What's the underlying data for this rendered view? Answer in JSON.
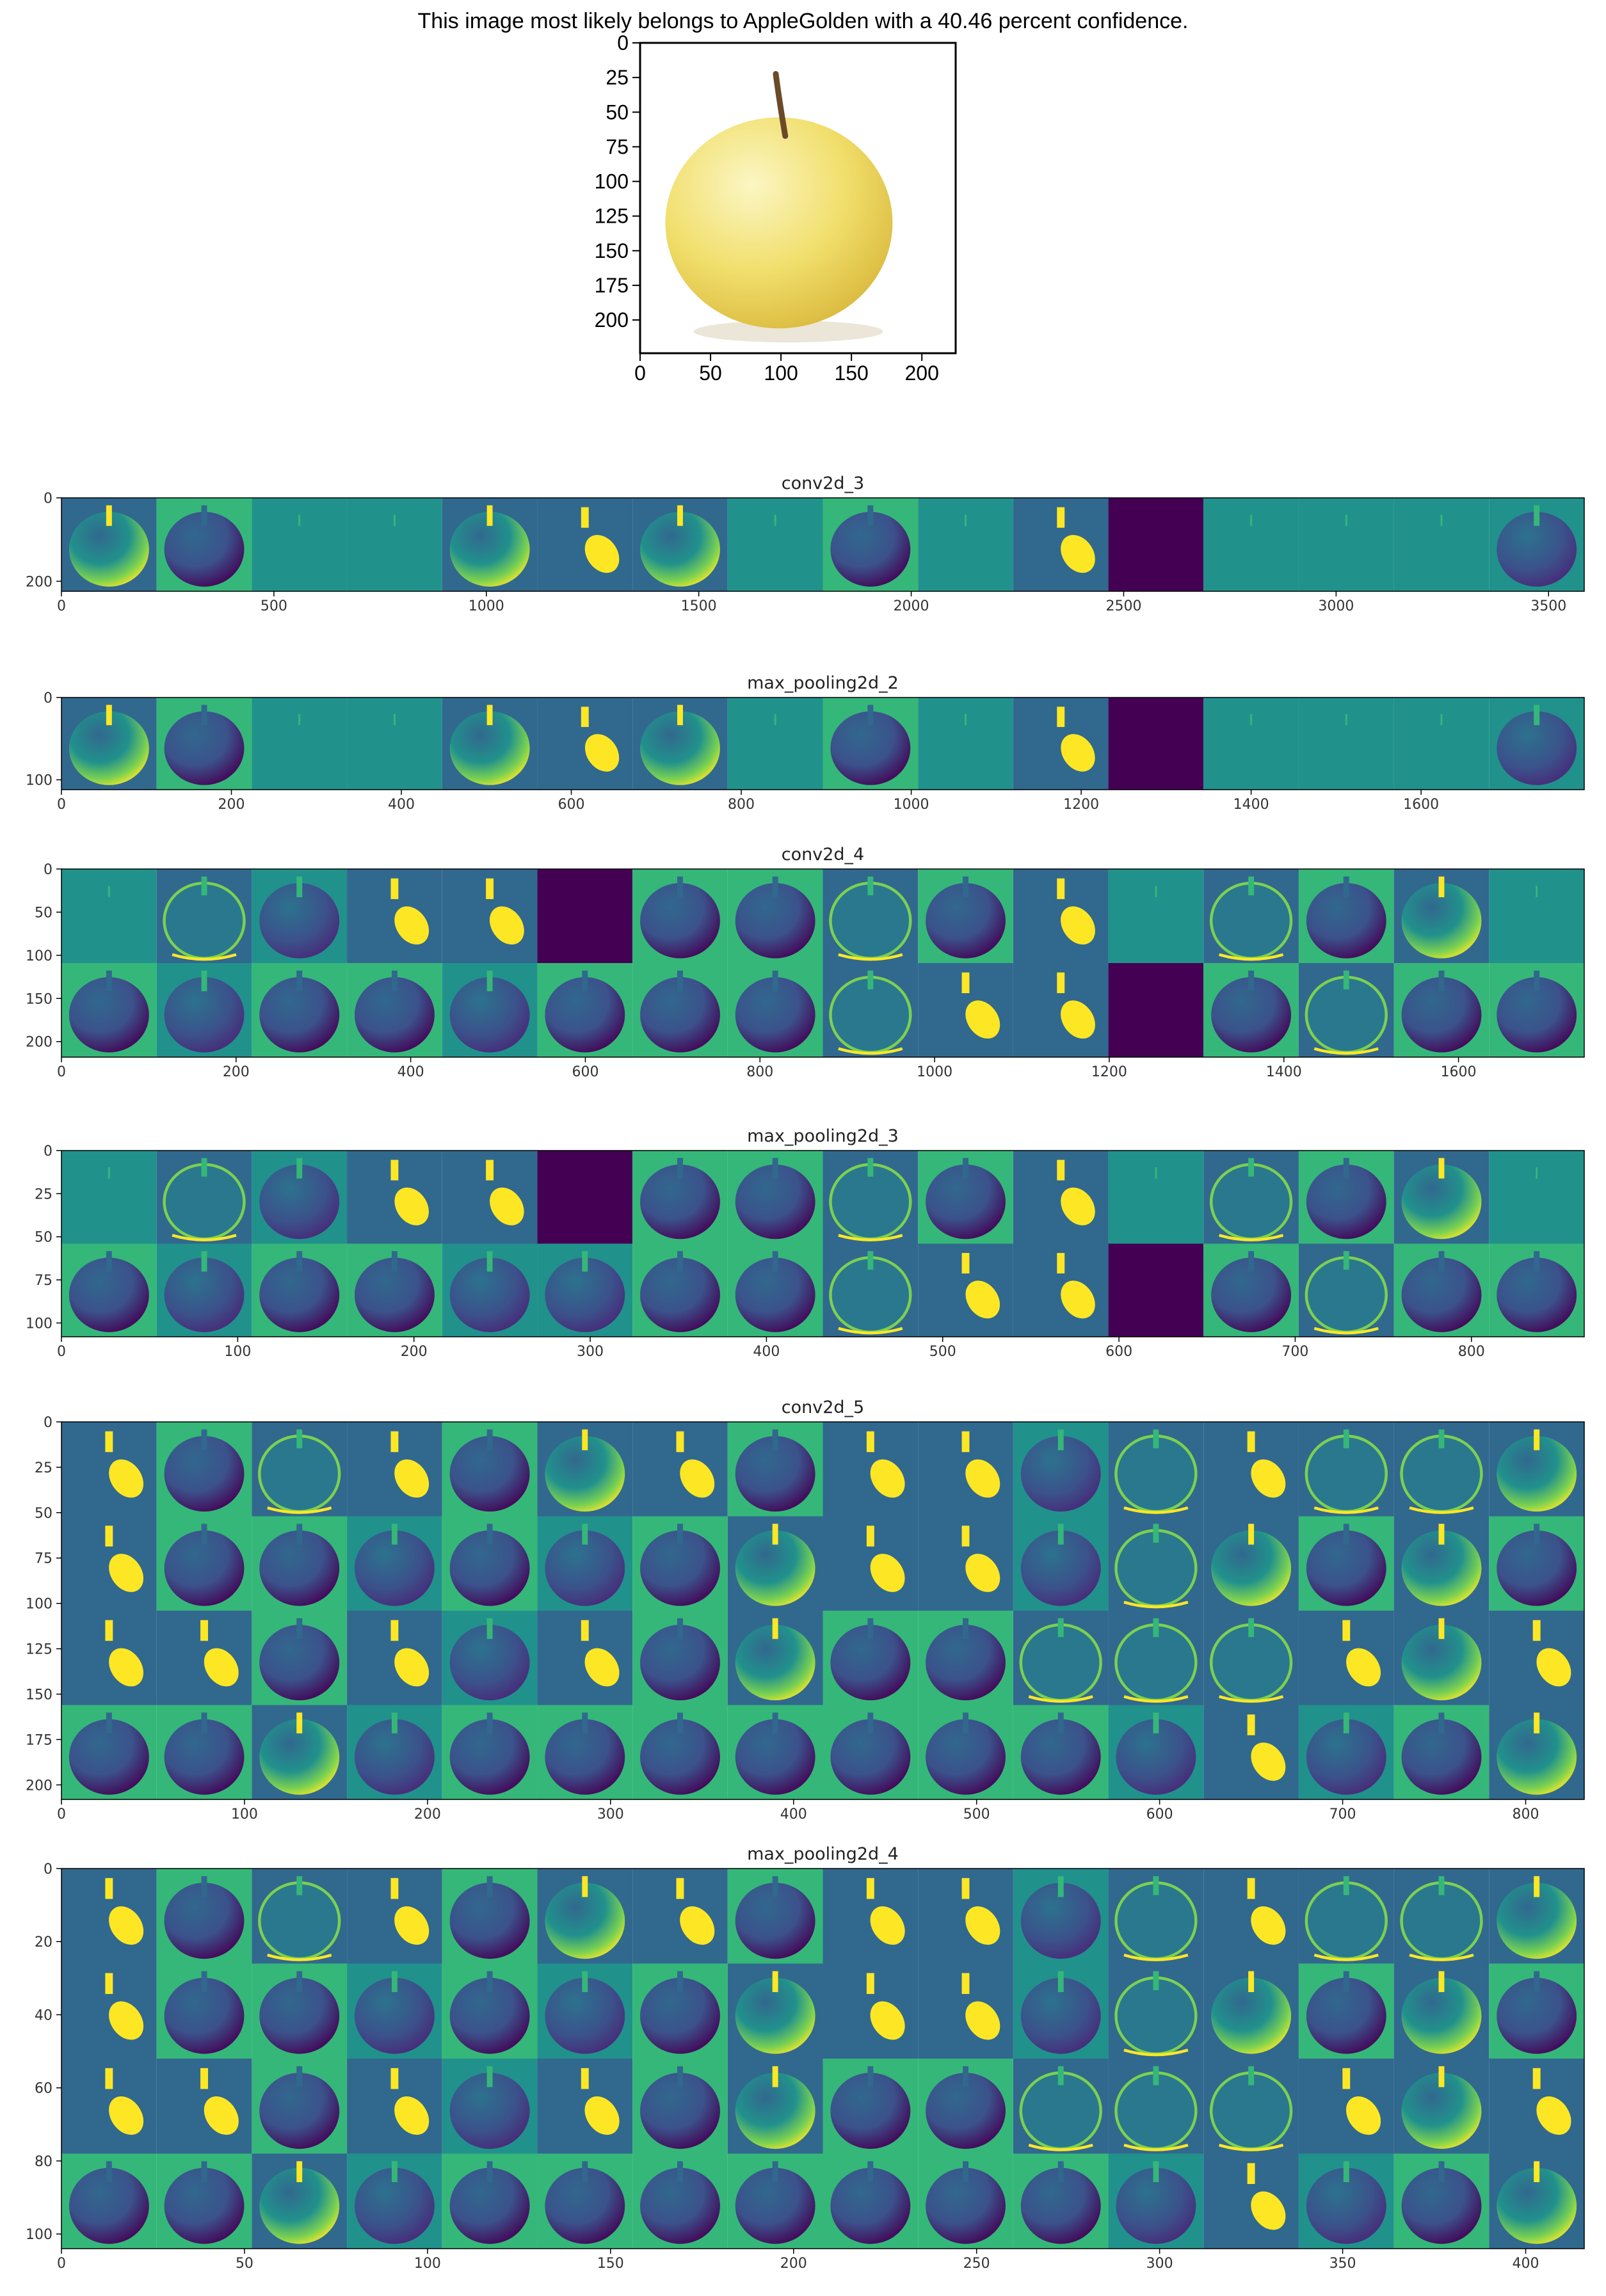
{
  "caption": "This image most likely belongs to AppleGolden with a 40.46 percent confidence.",
  "colors": {
    "viridis_dark": "#440154",
    "viridis_blue": "#31688e",
    "viridis_teal": "#21918c",
    "viridis_green": "#35b779",
    "viridis_yellow": "#fde725",
    "apple_yellow": "#f0e06a",
    "stem_brown": "#6b4a2a"
  },
  "chart_data": [
    {
      "type": "image",
      "title": "",
      "content": "input image (golden apple)",
      "xlim": [
        0,
        224
      ],
      "ylim": [
        224,
        0
      ],
      "x_ticks": [
        "0",
        "50",
        "100",
        "150",
        "200"
      ],
      "y_ticks": [
        "0",
        "25",
        "50",
        "75",
        "100",
        "125",
        "150",
        "175",
        "200"
      ]
    },
    {
      "type": "heatmap",
      "title": "conv2d_3",
      "rows": 1,
      "cols": 16,
      "xlim": [
        0,
        3584
      ],
      "ylim": [
        224,
        0
      ],
      "x_ticks": [
        "0",
        "500",
        "1000",
        "1500",
        "2000",
        "2500",
        "3000",
        "3500"
      ],
      "y_ticks": [
        "0",
        "200"
      ],
      "tiles": [
        "apple_yellow",
        "apple_dark_green",
        "blank",
        "blank",
        "apple_yellow",
        "stem_yellow",
        "apple_yellow",
        "blank",
        "apple_dark_green",
        "blank",
        "stem_yellow",
        "dead",
        "blank",
        "blank",
        "blank",
        "apple_dark_blue"
      ]
    },
    {
      "type": "heatmap",
      "title": "max_pooling2d_2",
      "rows": 1,
      "cols": 16,
      "xlim": [
        0,
        1792
      ],
      "ylim": [
        112,
        0
      ],
      "x_ticks": [
        "0",
        "200",
        "400",
        "600",
        "800",
        "1000",
        "1200",
        "1400",
        "1600"
      ],
      "y_ticks": [
        "0",
        "100"
      ],
      "tiles": [
        "apple_yellow",
        "apple_dark_green",
        "blank",
        "blank",
        "apple_yellow",
        "stem_yellow",
        "apple_yellow",
        "blank",
        "apple_dark_green",
        "blank",
        "stem_yellow",
        "dead",
        "blank",
        "blank",
        "blank",
        "apple_dark_blue"
      ]
    },
    {
      "type": "heatmap",
      "title": "conv2d_4",
      "rows": 2,
      "cols": 16,
      "xlim": [
        0,
        1744
      ],
      "ylim": [
        218,
        0
      ],
      "x_ticks": [
        "0",
        "200",
        "400",
        "600",
        "800",
        "1000",
        "1200",
        "1400",
        "1600"
      ],
      "y_ticks": [
        "0",
        "50",
        "100",
        "150",
        "200"
      ],
      "tiles": [
        "blank",
        "outline",
        "apple_dark_blue",
        "stem_yellow",
        "stem_yellow",
        "dead",
        "apple_dark_green",
        "apple_dark_green",
        "outline",
        "apple_dark_green",
        "stem_yellow",
        "blank",
        "outline",
        "apple_dark_green",
        "apple_yellow",
        "blank",
        "apple_dark_green",
        "apple_dark_blue",
        "apple_dark_green",
        "apple_dark_green",
        "apple_dark_blue",
        "apple_dark_green",
        "apple_dark_green",
        "apple_dark_green",
        "outline",
        "stem_yellow",
        "stem_yellow",
        "dead",
        "apple_dark_green",
        "outline",
        "apple_dark_green",
        "apple_dark_green"
      ]
    },
    {
      "type": "heatmap",
      "title": "max_pooling2d_3",
      "rows": 2,
      "cols": 16,
      "xlim": [
        0,
        864
      ],
      "ylim": [
        108,
        0
      ],
      "x_ticks": [
        "0",
        "100",
        "200",
        "300",
        "400",
        "500",
        "600",
        "700",
        "800"
      ],
      "y_ticks": [
        "0",
        "25",
        "50",
        "75",
        "100"
      ],
      "tiles": [
        "blank",
        "outline",
        "apple_dark_blue",
        "stem_yellow",
        "stem_yellow",
        "dead",
        "apple_dark_green",
        "apple_dark_green",
        "outline",
        "apple_dark_green",
        "stem_yellow",
        "blank",
        "outline",
        "apple_dark_green",
        "apple_yellow",
        "blank",
        "apple_dark_green",
        "apple_dark_blue",
        "apple_dark_green",
        "apple_dark_green",
        "apple_dark_blue",
        "apple_dark_blue",
        "apple_dark_green",
        "apple_dark_green",
        "outline",
        "stem_yellow",
        "stem_yellow",
        "dead",
        "apple_dark_green",
        "outline",
        "apple_dark_green",
        "apple_dark_green"
      ]
    },
    {
      "type": "heatmap",
      "title": "conv2d_5",
      "rows": 4,
      "cols": 16,
      "xlim": [
        0,
        832
      ],
      "ylim": [
        208,
        0
      ],
      "x_ticks": [
        "0",
        "100",
        "200",
        "300",
        "400",
        "500",
        "600",
        "700",
        "800"
      ],
      "y_ticks": [
        "0",
        "25",
        "50",
        "75",
        "100",
        "125",
        "150",
        "175",
        "200"
      ],
      "tiles": [
        "stem_yellow",
        "apple_dark_green",
        "outline",
        "stem_yellow",
        "apple_dark_green",
        "apple_yellow",
        "stem_yellow",
        "apple_dark_green",
        "stem_yellow",
        "stem_yellow",
        "apple_dark_blue",
        "outline",
        "stem_yellow",
        "outline",
        "outline",
        "apple_yellow",
        "stem_yellow",
        "apple_dark_green",
        "apple_dark_green",
        "apple_dark_blue",
        "apple_dark_green",
        "apple_dark_blue",
        "apple_dark_green",
        "apple_yellow",
        "stem_yellow",
        "stem_yellow",
        "apple_dark_blue",
        "outline",
        "apple_yellow",
        "apple_dark_green",
        "apple_yellow",
        "apple_dark_green",
        "stem_yellow",
        "stem_yellow",
        "apple_dark_green",
        "stem_yellow",
        "apple_dark_blue",
        "stem_yellow",
        "apple_dark_green",
        "apple_yellow",
        "apple_dark_green",
        "apple_dark_green",
        "outline",
        "outline",
        "outline",
        "stem_yellow",
        "apple_yellow",
        "stem_yellow",
        "apple_dark_green",
        "apple_dark_green",
        "apple_yellow",
        "apple_dark_blue",
        "apple_dark_green",
        "apple_dark_green",
        "apple_dark_green",
        "apple_dark_green",
        "apple_dark_green",
        "apple_dark_green",
        "apple_dark_green",
        "apple_dark_blue",
        "stem_yellow",
        "apple_dark_blue",
        "apple_dark_green",
        "apple_yellow"
      ]
    },
    {
      "type": "heatmap",
      "title": "max_pooling2d_4",
      "rows": 4,
      "cols": 16,
      "xlim": [
        0,
        416
      ],
      "ylim": [
        104,
        0
      ],
      "x_ticks": [
        "0",
        "50",
        "100",
        "150",
        "200",
        "250",
        "300",
        "350",
        "400"
      ],
      "y_ticks": [
        "0",
        "20",
        "40",
        "60",
        "80",
        "100"
      ],
      "tiles": [
        "stem_yellow",
        "apple_dark_green",
        "outline",
        "stem_yellow",
        "apple_dark_green",
        "apple_yellow",
        "stem_yellow",
        "apple_dark_green",
        "stem_yellow",
        "stem_yellow",
        "apple_dark_blue",
        "outline",
        "stem_yellow",
        "outline",
        "outline",
        "apple_yellow",
        "stem_yellow",
        "apple_dark_green",
        "apple_dark_green",
        "apple_dark_blue",
        "apple_dark_green",
        "apple_dark_blue",
        "apple_dark_green",
        "apple_yellow",
        "stem_yellow",
        "stem_yellow",
        "apple_dark_blue",
        "outline",
        "apple_yellow",
        "apple_dark_green",
        "apple_yellow",
        "apple_dark_green",
        "stem_yellow",
        "stem_yellow",
        "apple_dark_green",
        "stem_yellow",
        "apple_dark_blue",
        "stem_yellow",
        "apple_dark_green",
        "apple_yellow",
        "apple_dark_green",
        "apple_dark_green",
        "outline",
        "outline",
        "outline",
        "stem_yellow",
        "apple_yellow",
        "stem_yellow",
        "apple_dark_green",
        "apple_dark_green",
        "apple_yellow",
        "apple_dark_blue",
        "apple_dark_green",
        "apple_dark_green",
        "apple_dark_green",
        "apple_dark_green",
        "apple_dark_green",
        "apple_dark_green",
        "apple_dark_green",
        "apple_dark_blue",
        "stem_yellow",
        "apple_dark_blue",
        "apple_dark_green",
        "apple_yellow"
      ]
    }
  ]
}
